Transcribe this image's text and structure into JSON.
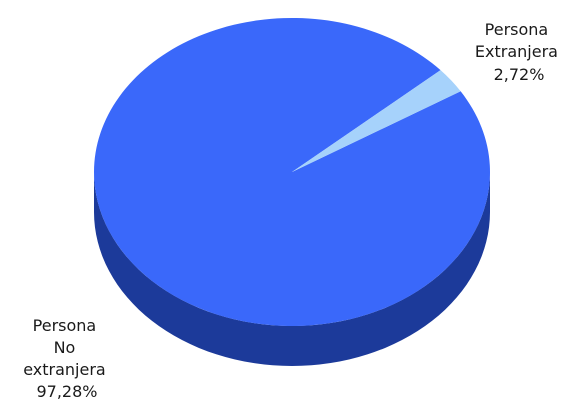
{
  "chart_data": {
    "type": "pie",
    "style": "3d",
    "title": "",
    "legend": "none",
    "slices": [
      {
        "label_lines": [
          "Persona",
          "No",
          "extranjera"
        ],
        "value": 97.28,
        "value_text": "97,28%",
        "color": "#3a68fa",
        "side_color": "#1c3a9a"
      },
      {
        "label_lines": [
          "Persona",
          "Extranjera"
        ],
        "value": 2.72,
        "value_text": "2,72%",
        "color": "#a6d2fb",
        "side_color": "#5b89c8"
      }
    ]
  }
}
